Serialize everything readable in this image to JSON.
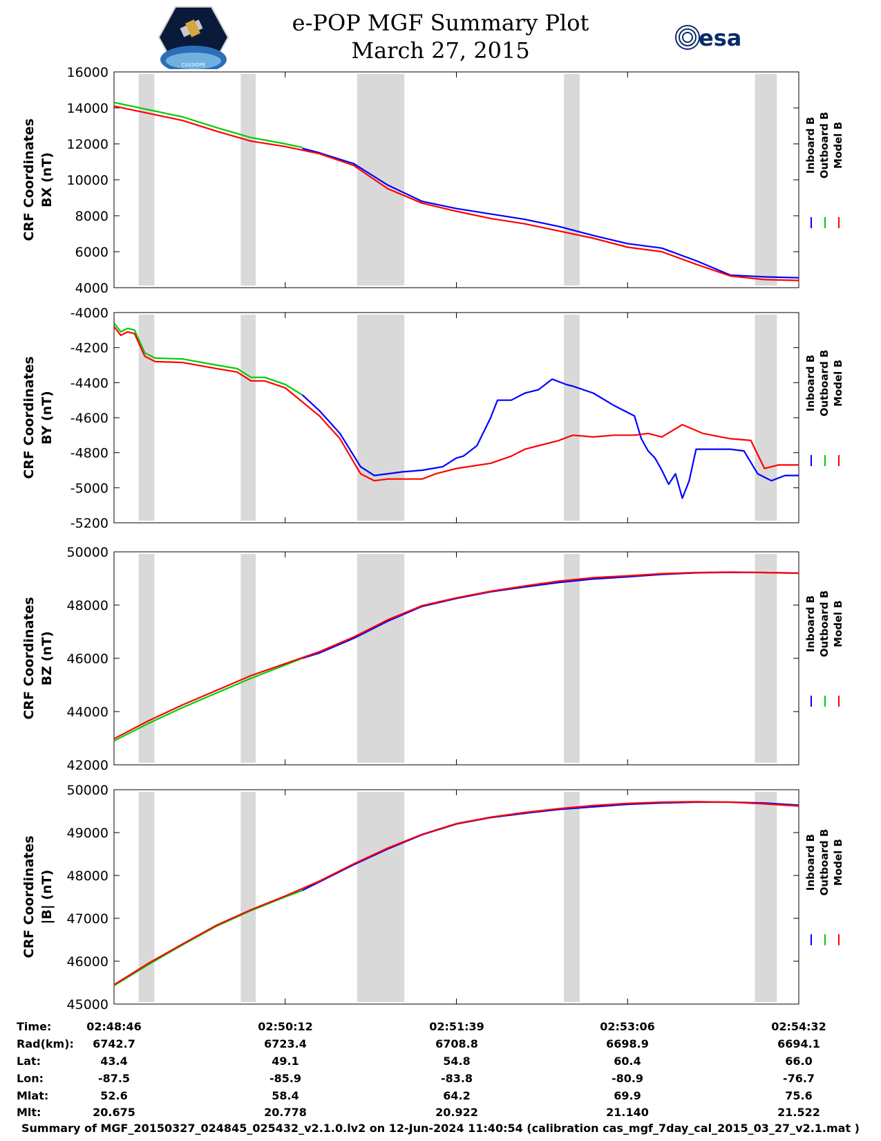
{
  "header": {
    "title": "e-POP MGF Summary Plot",
    "date": "March 27, 2015",
    "left_logo": "cassiope-satellite-logo",
    "right_logo": "esa-logo",
    "right_logo_text": "esa"
  },
  "legend": {
    "labels": [
      "Inboard B",
      "Outboard B",
      "Model B"
    ],
    "colors": [
      "#0000ff",
      "#00cc00",
      "#ff0000"
    ]
  },
  "chart_data": [
    {
      "type": "line",
      "ylabel": [
        "CRF Coordinates",
        "BX (nT)"
      ],
      "ylim": [
        4000,
        16000
      ],
      "yticks": [
        "4000",
        "6000",
        "8000",
        "10000",
        "12000",
        "14000",
        "16000"
      ],
      "xlim": [
        0,
        1
      ],
      "grey_bands": [
        [
          0.036,
          0.059
        ],
        [
          0.185,
          0.207
        ],
        [
          0.355,
          0.424
        ],
        [
          0.657,
          0.68
        ],
        [
          0.936,
          0.968
        ]
      ],
      "series": [
        {
          "name": "Outboard B",
          "color": "#00cc00",
          "x": [
            0,
            0.05,
            0.1,
            0.15,
            0.2,
            0.25,
            0.275
          ],
          "y": [
            14300,
            13900,
            13500,
            12900,
            12350,
            12000,
            11800
          ]
        },
        {
          "name": "Inboard B",
          "color": "#0000ff",
          "x": [
            0.275,
            0.3,
            0.35,
            0.4,
            0.45,
            0.5,
            0.55,
            0.6,
            0.65,
            0.7,
            0.75,
            0.8,
            0.85,
            0.9,
            0.95,
            1.0
          ],
          "y": [
            11750,
            11500,
            10900,
            9700,
            8800,
            8400,
            8100,
            7800,
            7400,
            6900,
            6450,
            6200,
            5500,
            4700,
            4600,
            4550
          ]
        },
        {
          "name": "Model B",
          "color": "#ff0000",
          "x": [
            0,
            0.05,
            0.1,
            0.15,
            0.2,
            0.25,
            0.3,
            0.35,
            0.4,
            0.45,
            0.5,
            0.55,
            0.6,
            0.65,
            0.7,
            0.75,
            0.8,
            0.85,
            0.9,
            0.95,
            1.0
          ],
          "y": [
            14100,
            13700,
            13300,
            12700,
            12150,
            11850,
            11450,
            10800,
            9500,
            8700,
            8250,
            7850,
            7550,
            7150,
            6750,
            6250,
            6000,
            5300,
            4650,
            4450,
            4400
          ]
        }
      ]
    },
    {
      "type": "line",
      "ylabel": [
        "CRF Coordinates",
        "BY (nT)"
      ],
      "ylim": [
        -5200,
        -4000
      ],
      "yticks": [
        "-5200",
        "-5000",
        "-4800",
        "-4600",
        "-4400",
        "-4200",
        "-4000"
      ],
      "xlim": [
        0,
        1
      ],
      "grey_bands": [
        [
          0.036,
          0.059
        ],
        [
          0.185,
          0.207
        ],
        [
          0.355,
          0.424
        ],
        [
          0.657,
          0.68
        ],
        [
          0.936,
          0.968
        ]
      ],
      "series": [
        {
          "name": "Outboard B",
          "color": "#00cc00",
          "x": [
            0,
            0.01,
            0.02,
            0.03,
            0.045,
            0.06,
            0.1,
            0.15,
            0.18,
            0.2,
            0.22,
            0.25,
            0.275
          ],
          "y": [
            -4060,
            -4110,
            -4090,
            -4100,
            -4230,
            -4260,
            -4265,
            -4300,
            -4320,
            -4370,
            -4370,
            -4410,
            -4470
          ]
        },
        {
          "name": "Inboard B",
          "color": "#0000ff",
          "x": [
            0.275,
            0.3,
            0.33,
            0.36,
            0.38,
            0.4,
            0.42,
            0.45,
            0.48,
            0.5,
            0.51,
            0.53,
            0.55,
            0.56,
            0.58,
            0.6,
            0.62,
            0.64,
            0.66,
            0.67,
            0.7,
            0.73,
            0.76,
            0.77,
            0.78,
            0.79,
            0.8,
            0.81,
            0.82,
            0.83,
            0.84,
            0.85,
            0.87,
            0.9,
            0.92,
            0.94,
            0.96,
            0.98,
            1.0
          ],
          "y": [
            -4470,
            -4560,
            -4690,
            -4880,
            -4930,
            -4920,
            -4910,
            -4900,
            -4880,
            -4830,
            -4820,
            -4760,
            -4600,
            -4500,
            -4500,
            -4460,
            -4440,
            -4380,
            -4410,
            -4420,
            -4460,
            -4530,
            -4590,
            -4720,
            -4790,
            -4830,
            -4900,
            -4980,
            -4920,
            -5060,
            -4960,
            -4780,
            -4780,
            -4780,
            -4790,
            -4920,
            -4960,
            -4930,
            -4930
          ]
        },
        {
          "name": "Model B",
          "color": "#ff0000",
          "x": [
            0,
            0.01,
            0.02,
            0.03,
            0.045,
            0.06,
            0.1,
            0.15,
            0.18,
            0.2,
            0.22,
            0.25,
            0.3,
            0.33,
            0.36,
            0.38,
            0.4,
            0.42,
            0.45,
            0.47,
            0.5,
            0.55,
            0.58,
            0.6,
            0.62,
            0.65,
            0.67,
            0.7,
            0.73,
            0.76,
            0.78,
            0.8,
            0.83,
            0.86,
            0.9,
            0.93,
            0.95,
            0.97,
            1.0
          ],
          "y": [
            -4080,
            -4130,
            -4110,
            -4120,
            -4250,
            -4280,
            -4285,
            -4320,
            -4340,
            -4390,
            -4390,
            -4430,
            -4590,
            -4720,
            -4920,
            -4960,
            -4950,
            -4950,
            -4950,
            -4920,
            -4890,
            -4860,
            -4820,
            -4780,
            -4760,
            -4730,
            -4700,
            -4710,
            -4700,
            -4700,
            -4690,
            -4710,
            -4640,
            -4690,
            -4720,
            -4730,
            -4890,
            -4870,
            -4870
          ]
        }
      ]
    },
    {
      "type": "line",
      "ylabel": [
        "CRF Coordinates",
        "BZ (nT)"
      ],
      "ylim": [
        42000,
        50000
      ],
      "yticks": [
        "42000",
        "44000",
        "46000",
        "48000",
        "50000"
      ],
      "xlim": [
        0,
        1
      ],
      "grey_bands": [
        [
          0.036,
          0.059
        ],
        [
          0.185,
          0.207
        ],
        [
          0.355,
          0.424
        ],
        [
          0.657,
          0.68
        ],
        [
          0.936,
          0.968
        ]
      ],
      "series": [
        {
          "name": "Outboard B",
          "color": "#00cc00",
          "x": [
            0,
            0.05,
            0.1,
            0.15,
            0.2,
            0.25,
            0.275
          ],
          "y": [
            42900,
            43550,
            44150,
            44700,
            45250,
            45750,
            46000
          ]
        },
        {
          "name": "Inboard B",
          "color": "#0000ff",
          "x": [
            0.275,
            0.3,
            0.35,
            0.4,
            0.45,
            0.5,
            0.55,
            0.6,
            0.65,
            0.7,
            0.75,
            0.8,
            0.85,
            0.9,
            0.95,
            1.0
          ],
          "y": [
            46000,
            46200,
            46750,
            47400,
            47950,
            48250,
            48500,
            48680,
            48850,
            48980,
            49060,
            49150,
            49210,
            49230,
            49220,
            49200
          ]
        },
        {
          "name": "Model B",
          "color": "#ff0000",
          "x": [
            0,
            0.05,
            0.1,
            0.15,
            0.2,
            0.25,
            0.3,
            0.35,
            0.4,
            0.45,
            0.5,
            0.55,
            0.6,
            0.65,
            0.7,
            0.75,
            0.8,
            0.85,
            0.9,
            0.95,
            1.0
          ],
          "y": [
            42980,
            43650,
            44250,
            44800,
            45350,
            45800,
            46250,
            46800,
            47450,
            47980,
            48270,
            48520,
            48720,
            48900,
            49030,
            49100,
            49180,
            49220,
            49240,
            49220,
            49200
          ]
        }
      ]
    },
    {
      "type": "line",
      "ylabel": [
        "CRF Coordinates",
        "|B| (nT)"
      ],
      "ylim": [
        45000,
        50000
      ],
      "yticks": [
        "45000",
        "46000",
        "47000",
        "48000",
        "49000",
        "50000"
      ],
      "xlim": [
        0,
        1
      ],
      "grey_bands": [
        [
          0.036,
          0.059
        ],
        [
          0.185,
          0.207
        ],
        [
          0.355,
          0.424
        ],
        [
          0.657,
          0.68
        ],
        [
          0.936,
          0.968
        ]
      ],
      "series": [
        {
          "name": "Outboard B",
          "color": "#00cc00",
          "x": [
            0,
            0.05,
            0.1,
            0.15,
            0.2,
            0.25,
            0.275
          ],
          "y": [
            45430,
            45920,
            46380,
            46820,
            47180,
            47500,
            47650
          ]
        },
        {
          "name": "Inboard B",
          "color": "#0000ff",
          "x": [
            0.275,
            0.3,
            0.35,
            0.4,
            0.45,
            0.5,
            0.55,
            0.6,
            0.65,
            0.7,
            0.75,
            0.8,
            0.85,
            0.9,
            0.95,
            1.0
          ],
          "y": [
            47650,
            47850,
            48250,
            48620,
            48950,
            49200,
            49350,
            49450,
            49540,
            49600,
            49660,
            49690,
            49710,
            49710,
            49690,
            49640
          ]
        },
        {
          "name": "Model B",
          "color": "#ff0000",
          "x": [
            0,
            0.05,
            0.1,
            0.15,
            0.2,
            0.25,
            0.3,
            0.35,
            0.4,
            0.45,
            0.5,
            0.55,
            0.6,
            0.65,
            0.7,
            0.75,
            0.8,
            0.85,
            0.9,
            0.95,
            1.0
          ],
          "y": [
            45450,
            45950,
            46400,
            46840,
            47200,
            47520,
            47870,
            48270,
            48640,
            48960,
            49210,
            49360,
            49470,
            49560,
            49630,
            49680,
            49710,
            49720,
            49710,
            49670,
            49620
          ]
        }
      ]
    }
  ],
  "table": {
    "row_labels": [
      "Time:",
      "Rad(km):",
      "Lat:",
      "Lon:",
      "Mlat:",
      "Mlt:"
    ],
    "columns": [
      [
        "02:48:46",
        "6742.7",
        "43.4",
        "-87.5",
        "52.6",
        "20.675"
      ],
      [
        "02:50:12",
        "6723.4",
        "49.1",
        "-85.9",
        "58.4",
        "20.778"
      ],
      [
        "02:51:39",
        "6708.8",
        "54.8",
        "-83.8",
        "64.2",
        "20.922"
      ],
      [
        "02:53:06",
        "6698.9",
        "60.4",
        "-80.9",
        "69.9",
        "21.140"
      ],
      [
        "02:54:32",
        "6694.1",
        "66.0",
        "-76.7",
        "75.6",
        "21.522"
      ]
    ]
  },
  "footer": "Summary of MGF_20150327_024845_025432_v2.1.0.lv2 on 12-Jun-2024 11:40:54 (calibration cas_mgf_7day_cal_2015_03_27_v2.1.mat )"
}
